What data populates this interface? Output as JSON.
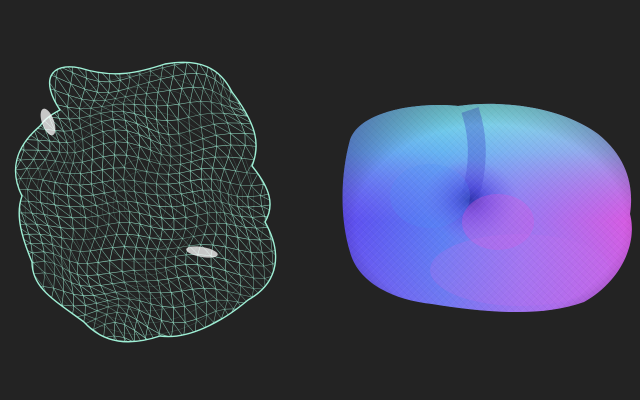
{
  "background_color": "#232323",
  "objects": [
    {
      "name": "wireframe-blob",
      "render_style": "wireframe",
      "stroke_color": "#9ff0d6",
      "highlight_color": "#ffffff"
    },
    {
      "name": "normal-shaded-blob",
      "render_style": "normal-map shading",
      "gradient_colors": [
        "#6a3cf2",
        "#4f7af6",
        "#6fe6ef",
        "#b37cf2",
        "#d45be0"
      ]
    }
  ]
}
